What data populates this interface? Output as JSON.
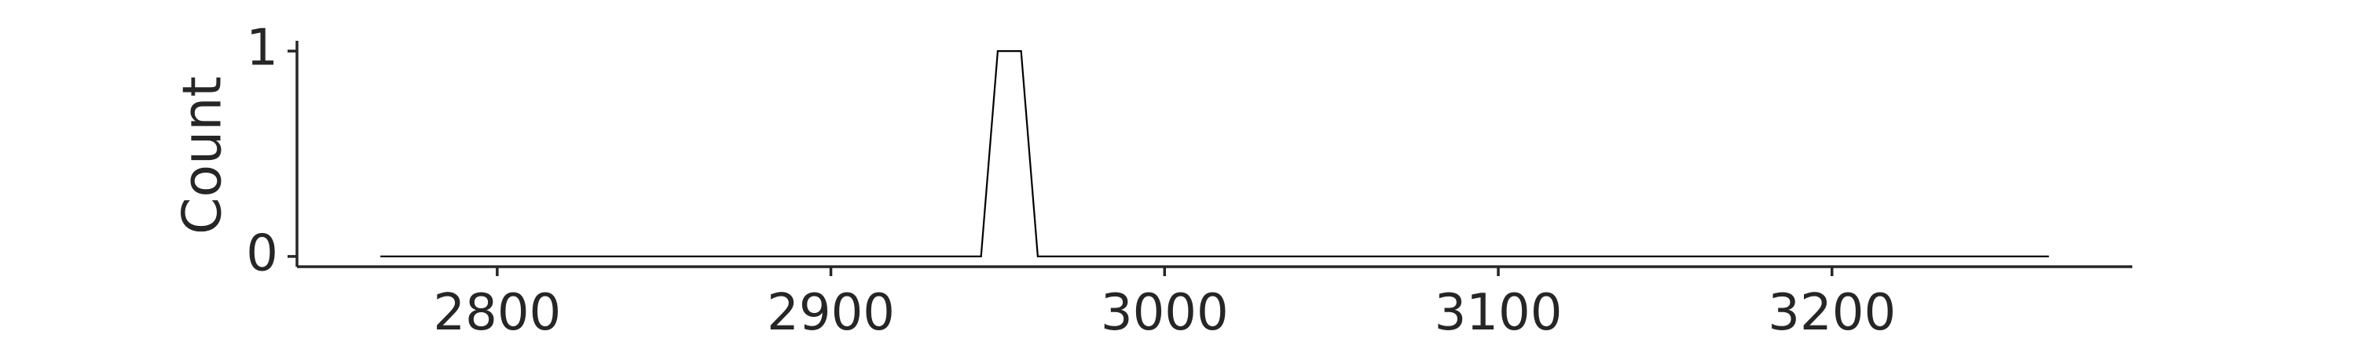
{
  "chart_data": {
    "type": "line",
    "title": "",
    "xlabel": "",
    "ylabel": "Count",
    "x": [
      2765,
      2945,
      2950,
      2957,
      2962,
      3265
    ],
    "values": [
      0,
      0,
      1,
      1,
      0,
      0
    ],
    "xlim": [
      2740,
      3290
    ],
    "ylim": [
      -0.05,
      1.05
    ],
    "x_ticks": [
      2800,
      2900,
      3000,
      3100,
      3200
    ],
    "x_tick_labels": [
      "2800",
      "2900",
      "3000",
      "3100",
      "3200"
    ],
    "y_ticks": [
      0,
      1
    ],
    "y_tick_labels": [
      "0",
      "1"
    ],
    "grid": false,
    "legend": "none",
    "line_color": "#000000",
    "axis_color": "#262626"
  }
}
